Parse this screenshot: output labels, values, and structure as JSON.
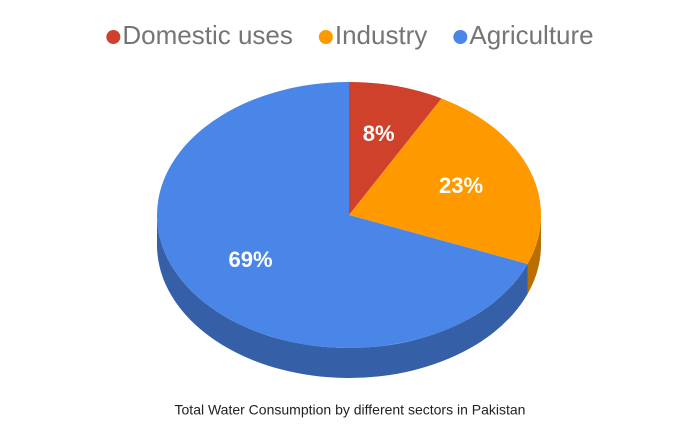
{
  "chart_data": {
    "type": "pie",
    "title": "Total Water Consumption by different sectors in Pakistan",
    "categories": [
      "Domestic uses",
      "Industry",
      "Agriculture"
    ],
    "values": [
      8,
      23,
      69
    ],
    "value_labels": [
      "8%",
      "23%",
      "69%"
    ],
    "colors": [
      "#d0412b",
      "#ff9900",
      "#4a86e8"
    ],
    "legend": "top"
  }
}
